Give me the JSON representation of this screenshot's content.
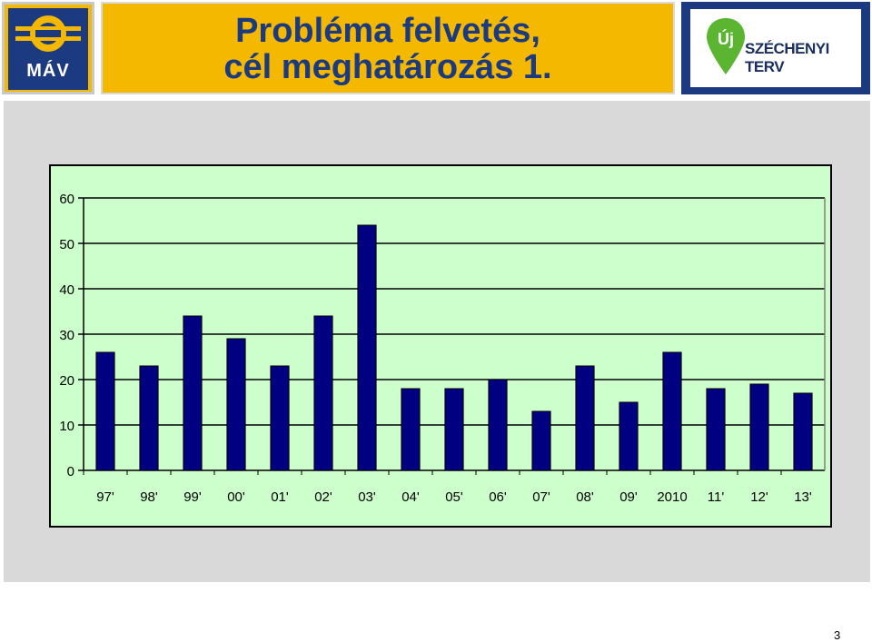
{
  "header": {
    "title_line1": "Probléma felvetés,",
    "title_line2": "cél meghatározás 1.",
    "mav_logo_text": "MÁV",
    "szechenyi_logo_text": "SZÉCHENYI TERV",
    "szechenyi_pin_text": "Új"
  },
  "colors": {
    "header_yellow": "#f5b800",
    "brand_blue": "#1b3a80",
    "plot_background": "#ccffcc",
    "bar_fill": "#000080",
    "panel_gray": "#d9d9d9",
    "pin_green": "#5cb531"
  },
  "chart_data": {
    "type": "bar",
    "categories": [
      "97'",
      "98'",
      "99'",
      "00'",
      "01'",
      "02'",
      "03'",
      "04'",
      "05'",
      "06'",
      "07'",
      "08'",
      "09'",
      "2010",
      "11'",
      "12'",
      "13'"
    ],
    "values": [
      26,
      23,
      34,
      29,
      23,
      34,
      54,
      18,
      18,
      20,
      13,
      23,
      15,
      26,
      18,
      19,
      17
    ],
    "y_ticks": [
      "0",
      "10",
      "20",
      "30",
      "40",
      "50",
      "60"
    ],
    "ylim": [
      0,
      60
    ],
    "grid": true,
    "legend": "none"
  },
  "footer": {
    "page_number": "3"
  }
}
